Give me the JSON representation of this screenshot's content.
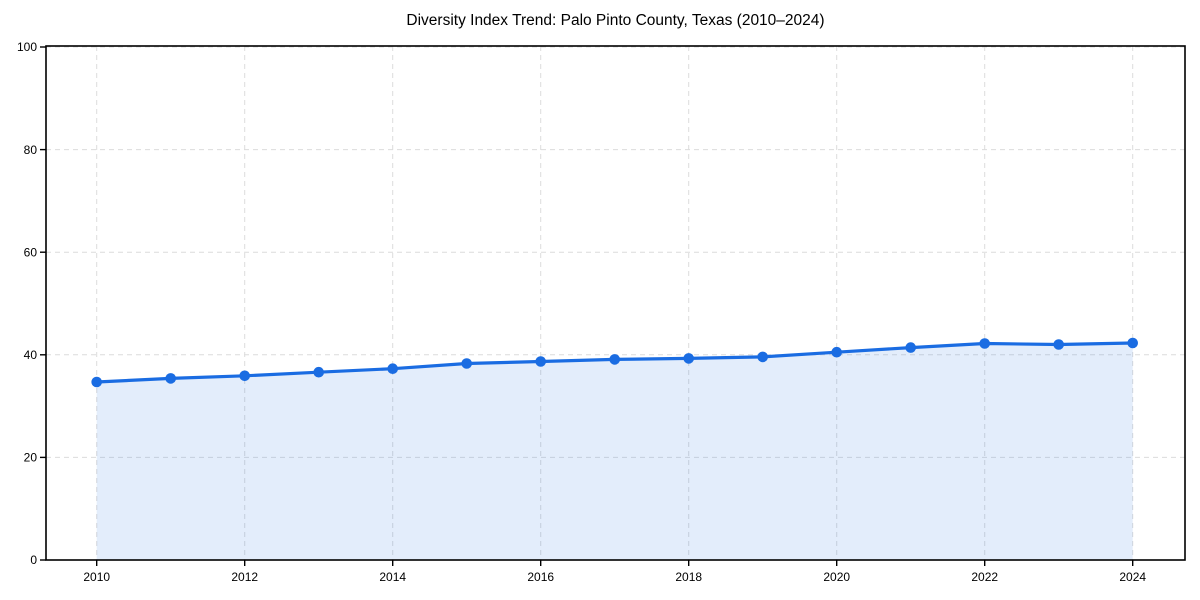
{
  "chart_data": {
    "type": "area",
    "title": "Diversity Index Trend: Palo Pinto County, Texas (2010–2024)",
    "xlabel": "",
    "ylabel": "",
    "x": [
      2010,
      2011,
      2012,
      2013,
      2014,
      2015,
      2016,
      2017,
      2018,
      2019,
      2020,
      2021,
      2022,
      2023,
      2024
    ],
    "series": [
      {
        "name": "Diversity Index",
        "values": [
          34.7,
          35.4,
          35.9,
          36.6,
          37.3,
          38.3,
          38.7,
          39.1,
          39.3,
          39.6,
          40.5,
          41.4,
          42.2,
          42.0,
          42.3
        ]
      }
    ],
    "ylim": [
      0,
      100
    ],
    "yticks": [
      0,
      20,
      40,
      60,
      80,
      100
    ],
    "xticks": [
      2010,
      2012,
      2014,
      2016,
      2018,
      2020,
      2022,
      2024
    ],
    "grid": true,
    "grid_style": "dashed",
    "legend": false,
    "line_color": "#1a6ce2",
    "fill_color": "rgba(26,108,226,0.12)",
    "grid_color": "#dcdcdc",
    "axis_color": "#000000",
    "background_color": "#ffffff",
    "marker": "circle"
  }
}
